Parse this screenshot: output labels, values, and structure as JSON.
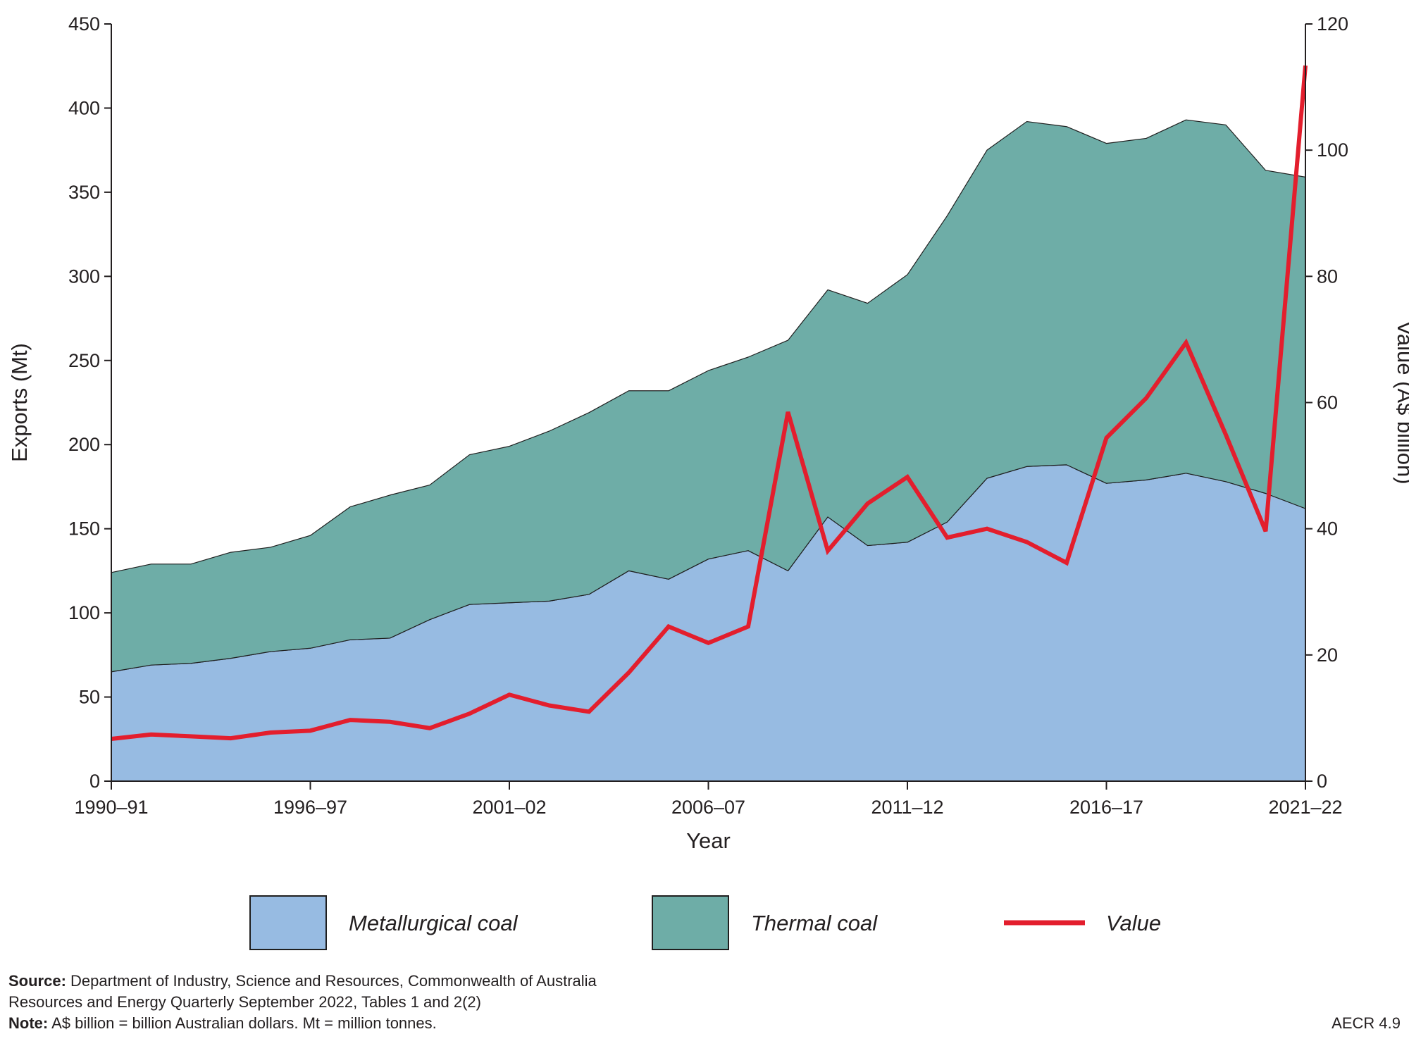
{
  "chart_data": {
    "type": "stacked-area-line",
    "categories": [
      "1990–91",
      null,
      null,
      null,
      null,
      "1996–97",
      null,
      null,
      null,
      null,
      "2001–02",
      null,
      null,
      null,
      null,
      "2006–07",
      null,
      null,
      null,
      null,
      "2011–12",
      null,
      null,
      null,
      null,
      "2016–17",
      null,
      null,
      null,
      null,
      "2021–22"
    ],
    "x_label": "Year",
    "y_label": "Exports (Mt)",
    "y2_label": "Value (A$ billion)",
    "ylim": [
      0,
      450
    ],
    "yticks": [
      0,
      50,
      100,
      150,
      200,
      250,
      300,
      350,
      400,
      450
    ],
    "y2lim": [
      0,
      120
    ],
    "y2ticks": [
      0,
      20,
      40,
      60,
      80,
      100,
      120
    ],
    "series": [
      {
        "name": "Metallurgical coal",
        "color": "#97bbe2",
        "kind": "area",
        "values": [
          65,
          69,
          70,
          73,
          77,
          79,
          84,
          85,
          96,
          105,
          106,
          107,
          111,
          125,
          120,
          132,
          137,
          125,
          157,
          140,
          142,
          154,
          180,
          187,
          188,
          177,
          179,
          183,
          178,
          171,
          162
        ]
      },
      {
        "name": "Thermal coal",
        "color": "#6eada7",
        "kind": "area",
        "values": [
          59,
          60,
          59,
          63,
          62,
          67,
          79,
          85,
          80,
          89,
          93,
          101,
          108,
          107,
          112,
          112,
          115,
          137,
          135,
          144,
          159,
          182,
          195,
          205,
          201,
          202,
          203,
          210,
          212,
          192,
          197
        ]
      },
      {
        "name": "Value",
        "color": "#e31e2d",
        "kind": "line",
        "axis": "y2",
        "values": [
          6.7,
          7.4,
          7.1,
          6.8,
          7.7,
          8.0,
          9.7,
          9.4,
          8.4,
          10.7,
          13.7,
          12.0,
          11.0,
          17.2,
          24.5,
          21.9,
          24.5,
          58.5,
          36.5,
          44.0,
          48.2,
          38.6,
          40.0,
          37.9,
          34.6,
          54.4,
          60.7,
          69.5,
          54.9,
          39.6,
          113.4
        ]
      }
    ]
  },
  "footer": {
    "source_label": "Source:",
    "source_line1": "Department of Industry, Science and Resources, Commonwealth of Australia",
    "source_line2": "Resources and Energy Quarterly September 2022, Tables 1 and 2(2)",
    "note_label": "Note:",
    "note_text": "A$ billion = billion Australian dollars. Mt = million tonnes.",
    "figure_id": "AECR 4.9"
  }
}
